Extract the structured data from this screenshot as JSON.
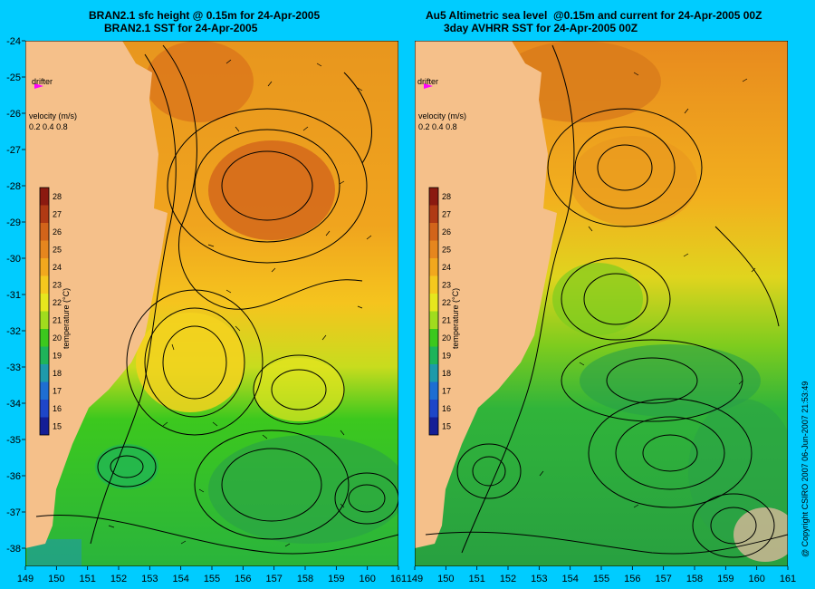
{
  "panels": [
    {
      "title_line1": "BRAN2.1 sfc height @ 0.15m for 24-Apr-2005",
      "title_line2": "BRAN2.1 SST for 24-Apr-2005"
    },
    {
      "title_line1": "Au5 Altimetric sea level  @0.15m and current for 24-Apr-2005 00Z",
      "title_line2": "3day AVHRR SST for 24-Apr-2005 00Z"
    }
  ],
  "drifter_label": "drifter",
  "velocity_legend": {
    "title": "velocity (m/s)",
    "values": [
      "0.2",
      "0.4",
      "0.8"
    ]
  },
  "colorbar": {
    "label": "temperature (°C)",
    "ticks": [
      "28",
      "27",
      "26",
      "25",
      "24",
      "23",
      "22",
      "21",
      "20",
      "19",
      "18",
      "17",
      "16",
      "15"
    ],
    "colors": [
      "#8b1a10",
      "#b03a14",
      "#d2641a",
      "#e6861e",
      "#f2a81e",
      "#f5c81e",
      "#e6e61e",
      "#a0dc1e",
      "#3cc81e",
      "#1eb45a",
      "#1e9aaa",
      "#1e6ed2",
      "#1e46c8",
      "#141e96"
    ]
  },
  "x_ticks": [
    "149",
    "150",
    "151",
    "152",
    "153",
    "154",
    "155",
    "156",
    "157",
    "158",
    "159",
    "160",
    "161"
  ],
  "y_ticks": [
    "-24",
    "-25",
    "-26",
    "-27",
    "-28",
    "-29",
    "-30",
    "-31",
    "-32",
    "-33",
    "-34",
    "-35",
    "-36",
    "-37",
    "-38"
  ],
  "copyright": "@ Copyright CSIRO 2007 06-Jun-2007 21:53:49",
  "colors": {
    "background": "#00ccff",
    "land": "#f5c08a",
    "drifter": "#ff00ff"
  }
}
